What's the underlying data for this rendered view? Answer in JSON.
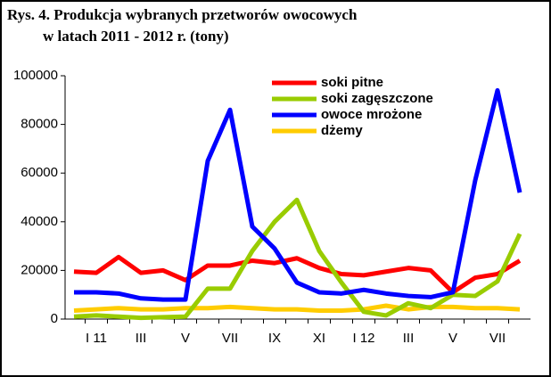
{
  "chart_data": {
    "type": "line",
    "title": [
      "Rys. 4. Produkcja wybranych przetworów owocowych",
      "w latach  2011 - 2012 r. (tony)"
    ],
    "categories": [
      null,
      "I 11",
      null,
      "III",
      null,
      "V",
      null,
      "VII",
      null,
      "IX",
      null,
      "XI",
      null,
      "I 12",
      null,
      "III",
      null,
      "V",
      null,
      "VII",
      null
    ],
    "series": [
      {
        "name": "soki pitne",
        "color": "#ff0000",
        "values": [
          19500,
          19000,
          25500,
          19000,
          20000,
          16000,
          22000,
          22000,
          24000,
          23000,
          25000,
          21000,
          18500,
          18000,
          19500,
          21000,
          20000,
          11000,
          17000,
          18500,
          24000
        ]
      },
      {
        "name": "soki zagęszczone",
        "color": "#99cc00",
        "values": [
          1000,
          1500,
          1000,
          500,
          800,
          1000,
          12500,
          12500,
          28000,
          40000,
          49000,
          28000,
          15000,
          3000,
          1500,
          6500,
          4500,
          10000,
          9500,
          15500,
          35000
        ]
      },
      {
        "name": "owoce mrożone",
        "color": "#0000ff",
        "values": [
          11000,
          11000,
          10500,
          8500,
          8000,
          8000,
          65000,
          86000,
          38000,
          29000,
          15000,
          11000,
          10500,
          12000,
          10500,
          9500,
          9000,
          11000,
          57000,
          94000,
          52000
        ]
      },
      {
        "name": "dżemy",
        "color": "#ffcc00",
        "values": [
          3500,
          4000,
          4500,
          4000,
          4000,
          4500,
          4500,
          5000,
          4500,
          4000,
          4000,
          3500,
          3500,
          4000,
          5500,
          4000,
          5000,
          5000,
          4500,
          4500,
          4000
        ]
      }
    ],
    "ylim": [
      0,
      100000
    ],
    "yticks": [
      0,
      20000,
      40000,
      60000,
      80000,
      100000
    ]
  }
}
